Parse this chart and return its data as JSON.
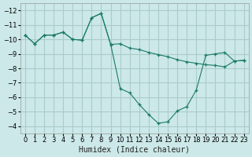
{
  "xlabel": "Humidex (Indice chaleur)",
  "ylabel": "",
  "bg_color": "#cce8e8",
  "grid_color": "#aacccc",
  "line_color": "#1a7a6a",
  "xlim": [
    -0.5,
    23.5
  ],
  "ylim": [
    -12.5,
    -3.5
  ],
  "x_ticks": [
    0,
    1,
    2,
    3,
    4,
    5,
    6,
    7,
    8,
    9,
    10,
    11,
    12,
    13,
    14,
    15,
    16,
    17,
    18,
    19,
    20,
    21,
    22,
    23
  ],
  "y_ticks": [
    -4,
    -5,
    -6,
    -7,
    -8,
    -9,
    -10,
    -11,
    -12
  ],
  "curve1_x": [
    0,
    1,
    2,
    3,
    4,
    5,
    6,
    7,
    8,
    9,
    10,
    11,
    12,
    13,
    14,
    15,
    16,
    17,
    18,
    19,
    20,
    21,
    22,
    23
  ],
  "curve1_y": [
    -10.3,
    -9.7,
    -10.3,
    -10.3,
    -10.5,
    -10.0,
    -9.95,
    -11.5,
    -11.8,
    -9.65,
    -9.7,
    -9.4,
    -9.3,
    -9.1,
    -8.95,
    -8.8,
    -8.6,
    -8.45,
    -8.35,
    -8.25,
    -8.2,
    -8.1,
    -8.5,
    -8.55
  ],
  "curve2_x": [
    0,
    1,
    2,
    3,
    4,
    5,
    6,
    7,
    8,
    9,
    10,
    11,
    12,
    13,
    14,
    15,
    16,
    17,
    18,
    19,
    20,
    21,
    22,
    23
  ],
  "curve2_y": [
    -10.3,
    -9.7,
    -10.3,
    -10.3,
    -10.5,
    -10.0,
    -9.95,
    -11.5,
    -11.8,
    -9.65,
    -6.6,
    -6.3,
    -5.5,
    -4.8,
    -4.2,
    -4.3,
    -5.05,
    -5.35,
    -6.5,
    -8.9,
    -9.0,
    -9.1,
    -8.5,
    -8.55
  ]
}
